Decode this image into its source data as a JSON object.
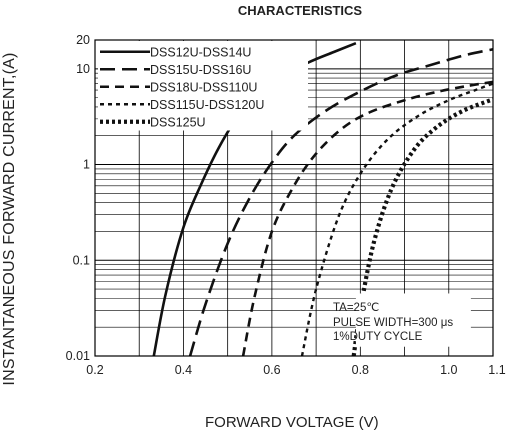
{
  "chart_data": {
    "type": "line",
    "title": "CHARACTERISTICS",
    "xlabel": "FORWARD VOLTAGE (V)",
    "ylabel": "INSTANTANEOUS FORWARD CURRENT,(A)",
    "xlim": [
      0.2,
      1.1
    ],
    "ylim": [
      0.01,
      20
    ],
    "yscale": "log",
    "grid": true,
    "legend_position": "top-left",
    "x_ticks": [
      "0.2",
      "0.4",
      "0.6",
      "0.8",
      "1.0",
      "1.1"
    ],
    "x_tick_values": [
      0.2,
      0.4,
      0.6,
      0.8,
      1.0,
      1.1
    ],
    "y_ticks": [
      "0.01",
      "0.1",
      "1",
      "10",
      "20"
    ],
    "y_tick_values": [
      0.01,
      0.1,
      1,
      10,
      20
    ],
    "annotations": [
      "TA=25℃",
      "PULSE WIDTH=300 μs",
      "1%DUTY CYCLE"
    ],
    "series": [
      {
        "name": "DSS12U-DSS14U",
        "dash": "solid",
        "x": [
          0.333,
          0.36,
          0.4,
          0.44,
          0.48,
          0.52,
          0.57,
          0.62,
          0.68,
          0.74,
          0.79
        ],
        "y": [
          0.01,
          0.045,
          0.22,
          0.62,
          1.5,
          3.0,
          5.3,
          8.0,
          11.5,
          15,
          18.5
        ]
      },
      {
        "name": "DSS15U-DSS16U",
        "dash": "long-dash",
        "x": [
          0.415,
          0.45,
          0.5,
          0.55,
          0.6,
          0.65,
          0.72,
          0.8,
          0.88,
          0.96,
          1.04,
          1.1
        ],
        "y": [
          0.01,
          0.035,
          0.15,
          0.45,
          1.05,
          2.0,
          3.6,
          5.8,
          8.5,
          11,
          14,
          16
        ]
      },
      {
        "name": "DSS18U-DSS110U",
        "dash": "dash",
        "x": [
          0.535,
          0.56,
          0.6,
          0.65,
          0.7,
          0.76,
          0.82,
          0.9,
          0.97,
          1.04,
          1.1
        ],
        "y": [
          0.01,
          0.04,
          0.2,
          0.6,
          1.3,
          2.4,
          3.5,
          4.7,
          5.7,
          6.6,
          7.3
        ]
      },
      {
        "name": "DSS115U-DSS120U",
        "dash": "short-dash",
        "x": [
          0.668,
          0.7,
          0.75,
          0.8,
          0.86,
          0.93,
          1.0,
          1.06,
          1.1
        ],
        "y": [
          0.01,
          0.05,
          0.28,
          0.8,
          1.8,
          3.2,
          4.7,
          6.0,
          7.0
        ]
      },
      {
        "name": "DSS125U",
        "dash": "dotted-heavy",
        "x": [
          0.785,
          0.8,
          0.83,
          0.87,
          0.92,
          0.97,
          1.03,
          1.1
        ],
        "y": [
          0.01,
          0.03,
          0.15,
          0.55,
          1.4,
          2.4,
          3.6,
          4.8
        ]
      }
    ]
  }
}
